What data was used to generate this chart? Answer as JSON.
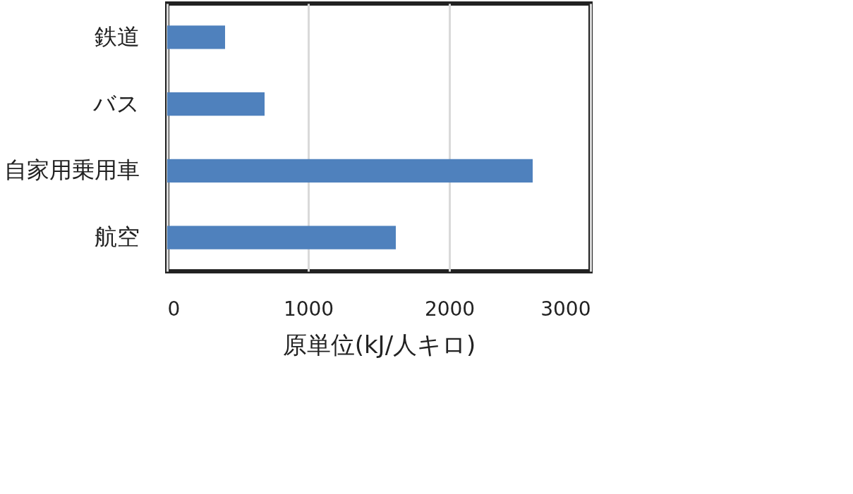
{
  "chart_data": {
    "type": "bar",
    "orientation": "horizontal",
    "categories": [
      "鉄道",
      "バス",
      "自家用乗用車",
      "航空"
    ],
    "values": [
      410,
      690,
      2590,
      1620
    ],
    "color": "#4f81bd",
    "xlabel": "原単位(kJ/人キロ)",
    "xlim": [
      0,
      3000
    ],
    "xticks": [
      0,
      1000,
      2000,
      3000
    ],
    "grid": "x"
  }
}
